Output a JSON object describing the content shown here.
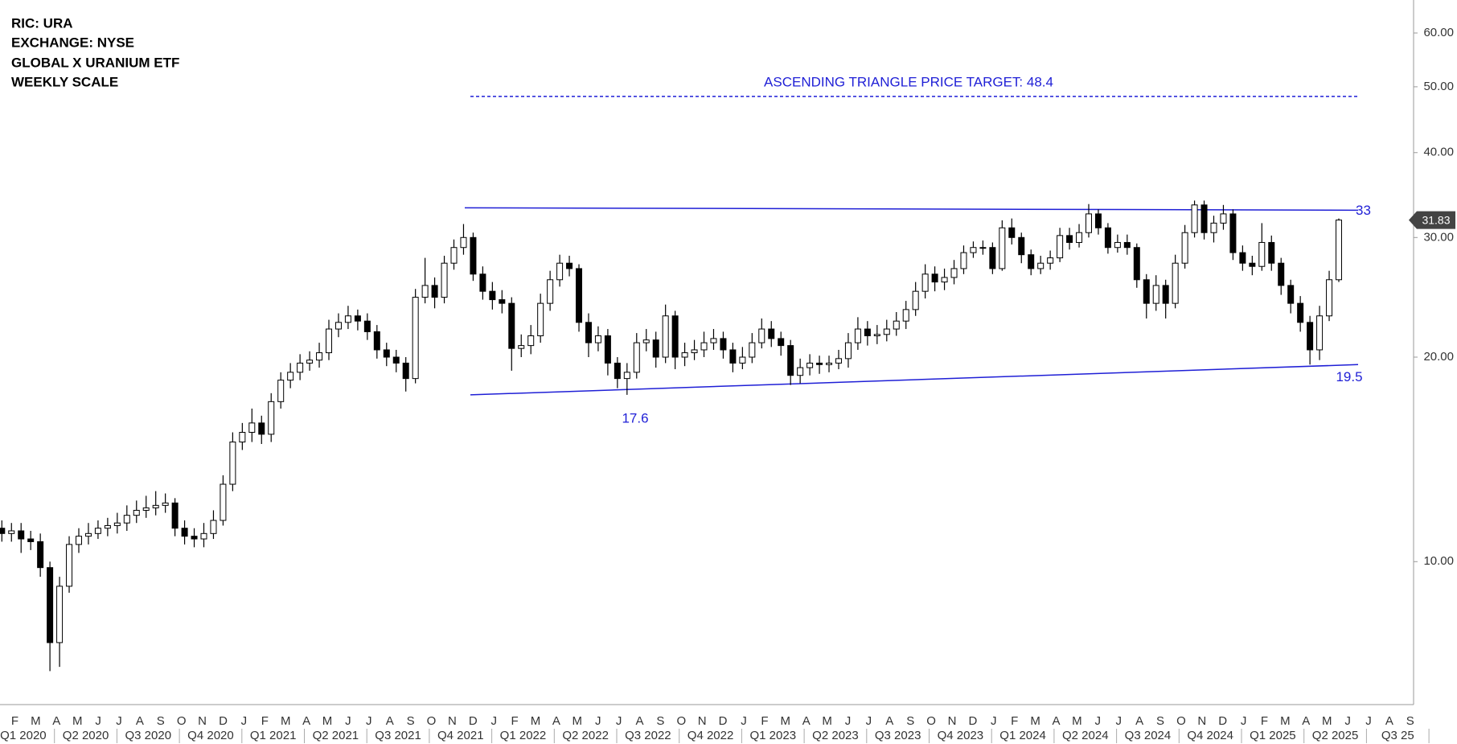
{
  "chart_data": {
    "type": "candlestick",
    "title_lines": [
      "RIC: URA",
      "EXCHANGE: NYSE",
      "GLOBAL X URANIUM ETF",
      "WEEKLY SCALE"
    ],
    "log_scale": true,
    "ylim": [
      6.16,
      67.1
    ],
    "yticks": [
      {
        "value": 10,
        "label": "10.00"
      },
      {
        "value": 20,
        "label": "20.00"
      },
      {
        "value": 30,
        "label": "30.00"
      },
      {
        "value": 40,
        "label": "40.00"
      },
      {
        "value": 50,
        "label": "50.00"
      },
      {
        "value": 60,
        "label": "60.00"
      }
    ],
    "months": [
      "F",
      "M",
      "A",
      "M",
      "J",
      "J",
      "A",
      "S",
      "O",
      "N",
      "D",
      "J",
      "F",
      "M",
      "A",
      "M",
      "J",
      "J",
      "A",
      "S",
      "O",
      "N",
      "D",
      "J",
      "F",
      "M",
      "A",
      "M",
      "J",
      "J",
      "A",
      "S",
      "O",
      "N",
      "D",
      "J",
      "F",
      "M",
      "A",
      "M",
      "J",
      "J",
      "A",
      "S",
      "O",
      "N",
      "D",
      "J",
      "F",
      "M",
      "A",
      "M",
      "J",
      "J",
      "A",
      "S",
      "O",
      "N",
      "D",
      "J",
      "F",
      "M",
      "A",
      "M",
      "J",
      "J",
      "A",
      "S"
    ],
    "quarters": [
      "Q1 2020",
      "Q2 2020",
      "Q3 2020",
      "Q4 2020",
      "Q1 2021",
      "Q2 2021",
      "Q3 2021",
      "Q4 2021",
      "Q1 2022",
      "Q2 2022",
      "Q3 2022",
      "Q4 2022",
      "Q1 2023",
      "Q2 2023",
      "Q3 2023",
      "Q4 2023",
      "Q1 2024",
      "Q2 2024",
      "Q3 2024",
      "Q4 2024",
      "Q1 2025",
      "Q2 2025",
      "Q3 25"
    ],
    "open": [
      11.2,
      11.0,
      11.1,
      10.8,
      10.7,
      9.8,
      7.6,
      9.2,
      10.6,
      10.9,
      11.0,
      11.2,
      11.3,
      11.4,
      11.7,
      11.9,
      12.0,
      12.1,
      12.2,
      11.2,
      10.9,
      10.8,
      11.0,
      11.5,
      13.0,
      15.0,
      15.5,
      16.0,
      15.4,
      17.2,
      18.5,
      19.0,
      19.6,
      19.8,
      20.3,
      22.0,
      22.5,
      23.0,
      22.6,
      21.8,
      20.5,
      20.0,
      19.6,
      18.6,
      24.5,
      25.5,
      24.5,
      27.5,
      29.0,
      30.0,
      26.5,
      25.0,
      24.3,
      24.0,
      20.6,
      20.8,
      21.5,
      24.0,
      26.0,
      27.5,
      27.0,
      22.5,
      21.0,
      21.5,
      19.6,
      18.6,
      19.0,
      21.0,
      21.2,
      20.0,
      23.0,
      20.0,
      20.3,
      20.5,
      21.0,
      21.3,
      20.5,
      19.6,
      20.0,
      21.0,
      22.0,
      21.3,
      20.8,
      18.8,
      19.3,
      19.6,
      19.5,
      19.6,
      19.9,
      21.0,
      22.0,
      21.5,
      21.6,
      22.0,
      22.6,
      23.5,
      25.0,
      26.5,
      25.8,
      26.2,
      27.0,
      28.5,
      29.0,
      29.0,
      27.0,
      31.0,
      30.0,
      28.3,
      27.0,
      27.5,
      28.0,
      30.2,
      29.5,
      30.5,
      32.5,
      31.0,
      29.0,
      29.5,
      29.0,
      26.0,
      24.0,
      25.5,
      24.0,
      27.5,
      30.5,
      33.5,
      30.5,
      31.5,
      32.5,
      28.5,
      27.5,
      27.2,
      29.5,
      27.5,
      25.5,
      24.0,
      22.5,
      20.5,
      23.0,
      26.0
    ],
    "high": [
      11.5,
      11.4,
      11.4,
      11.1,
      11.0,
      10.0,
      9.5,
      10.9,
      11.2,
      11.4,
      11.5,
      11.6,
      11.8,
      12.1,
      12.3,
      12.5,
      12.7,
      12.6,
      12.4,
      11.5,
      11.2,
      11.4,
      11.9,
      13.4,
      15.5,
      16.0,
      16.8,
      16.4,
      17.7,
      19.0,
      19.6,
      20.2,
      20.4,
      21.0,
      22.7,
      23.2,
      23.8,
      23.5,
      23.2,
      22.3,
      21.0,
      20.5,
      20.0,
      25.2,
      28.0,
      26.2,
      28.2,
      29.8,
      31.4,
      30.5,
      27.2,
      25.8,
      25.1,
      24.5,
      21.6,
      22.3,
      24.8,
      26.8,
      28.3,
      28.2,
      27.4,
      23.2,
      22.2,
      22.0,
      20.0,
      19.6,
      21.7,
      22.0,
      21.8,
      23.9,
      23.4,
      21.0,
      21.2,
      21.8,
      22.0,
      21.8,
      21.0,
      20.7,
      21.7,
      22.8,
      22.6,
      21.8,
      21.2,
      19.9,
      20.2,
      20.1,
      20.1,
      20.5,
      21.7,
      22.9,
      22.6,
      22.3,
      22.7,
      23.3,
      24.2,
      25.8,
      27.4,
      27.2,
      27.0,
      27.8,
      29.2,
      29.6,
      29.7,
      29.5,
      31.8,
      32.0,
      30.5,
      28.8,
      28.2,
      28.7,
      31.0,
      31.0,
      31.4,
      33.6,
      33.0,
      31.5,
      30.3,
      30.3,
      29.4,
      26.5,
      26.4,
      26.0,
      28.3,
      31.3,
      34.0,
      34.0,
      32.3,
      33.5,
      33.0,
      29.2,
      28.2,
      31.5,
      30.2,
      28.0,
      26.0,
      24.6,
      23.0,
      23.8,
      26.8,
      32.0
    ],
    "low": [
      10.7,
      10.7,
      10.3,
      10.4,
      9.5,
      6.9,
      7.0,
      9.0,
      10.3,
      10.6,
      10.8,
      10.9,
      11.0,
      11.1,
      11.4,
      11.6,
      11.7,
      11.8,
      10.9,
      10.6,
      10.5,
      10.5,
      10.8,
      11.3,
      12.7,
      14.6,
      15.0,
      14.9,
      15.0,
      16.8,
      18.0,
      18.5,
      19.1,
      19.3,
      19.8,
      21.4,
      22.0,
      21.9,
      21.2,
      19.9,
      19.4,
      19.0,
      17.8,
      18.3,
      24.0,
      23.6,
      24.0,
      26.9,
      28.3,
      25.9,
      24.3,
      23.5,
      23.2,
      19.1,
      20.0,
      20.2,
      21.0,
      23.4,
      25.4,
      26.3,
      21.8,
      20.0,
      20.4,
      18.8,
      18.0,
      17.6,
      18.6,
      20.4,
      19.3,
      19.6,
      19.2,
      19.4,
      19.8,
      20.0,
      20.5,
      19.9,
      19.0,
      19.2,
      19.6,
      20.6,
      20.7,
      20.1,
      18.2,
      18.3,
      18.8,
      18.9,
      19.0,
      19.2,
      19.3,
      20.5,
      20.8,
      20.9,
      21.1,
      21.5,
      22.0,
      23.0,
      24.4,
      25.0,
      25.1,
      25.6,
      26.5,
      28.0,
      28.3,
      26.5,
      26.8,
      29.3,
      27.5,
      26.4,
      26.5,
      26.9,
      27.6,
      28.8,
      29.0,
      30.0,
      30.3,
      28.4,
      28.5,
      28.3,
      25.3,
      22.8,
      23.4,
      22.8,
      23.6,
      27.0,
      30.0,
      29.8,
      29.5,
      30.8,
      27.8,
      26.8,
      26.4,
      26.8,
      26.8,
      24.7,
      23.2,
      21.8,
      19.5,
      19.8,
      22.6,
      25.8
    ],
    "close": [
      11.0,
      11.1,
      10.8,
      10.7,
      9.8,
      7.6,
      9.2,
      10.6,
      10.9,
      11.0,
      11.2,
      11.3,
      11.4,
      11.7,
      11.9,
      12.0,
      12.1,
      12.2,
      11.2,
      10.9,
      10.8,
      11.0,
      11.5,
      13.0,
      15.0,
      15.5,
      16.0,
      15.4,
      17.2,
      18.5,
      19.0,
      19.6,
      19.8,
      20.3,
      22.0,
      22.5,
      23.0,
      22.6,
      21.8,
      20.5,
      20.0,
      19.6,
      18.6,
      24.5,
      25.5,
      24.5,
      27.5,
      29.0,
      30.0,
      26.5,
      25.0,
      24.3,
      24.0,
      20.6,
      20.8,
      21.5,
      24.0,
      26.0,
      27.5,
      27.0,
      22.5,
      21.0,
      21.5,
      19.6,
      18.6,
      19.0,
      21.0,
      21.2,
      20.0,
      23.0,
      20.0,
      20.3,
      20.5,
      21.0,
      21.3,
      20.5,
      19.6,
      20.0,
      21.0,
      22.0,
      21.3,
      20.8,
      18.8,
      19.3,
      19.6,
      19.5,
      19.6,
      19.9,
      21.0,
      22.0,
      21.5,
      21.6,
      22.0,
      22.6,
      23.5,
      25.0,
      26.5,
      25.8,
      26.2,
      27.0,
      28.5,
      29.0,
      29.0,
      27.0,
      31.0,
      30.0,
      28.3,
      27.0,
      27.5,
      28.0,
      30.2,
      29.5,
      30.5,
      32.5,
      31.0,
      29.0,
      29.5,
      29.0,
      26.0,
      24.0,
      25.5,
      24.0,
      27.5,
      30.5,
      33.5,
      30.5,
      31.5,
      32.5,
      28.5,
      27.5,
      27.2,
      29.5,
      27.5,
      25.5,
      24.0,
      22.5,
      20.5,
      23.0,
      26.0,
      31.83
    ],
    "annotations": {
      "target_label": "ASCENDING TRIANGLE PRICE TARGET: 48.4",
      "target": 48.4,
      "resistance": 33,
      "support": [
        17.6,
        19.5
      ]
    },
    "up_color": "#ffffff",
    "down_color": "#000000",
    "line_color": "#1f1fd6"
  }
}
